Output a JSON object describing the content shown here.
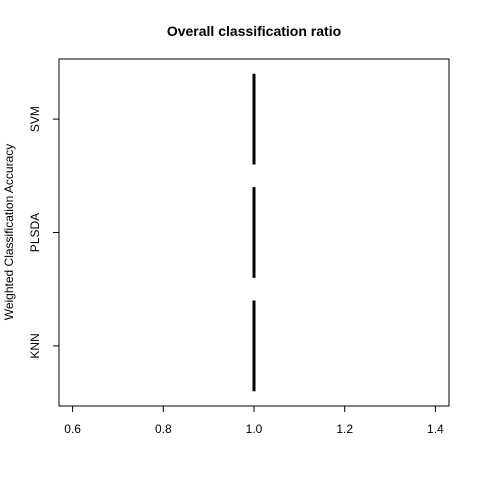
{
  "chart_data": {
    "type": "boxplot",
    "orientation": "horizontal",
    "title": "Overall classification ratio",
    "xlabel": "",
    "ylabel": "Weighted Classification Accuracy",
    "xlim": [
      0.57,
      1.43
    ],
    "xticks": [
      0.6,
      0.8,
      1.0,
      1.2,
      1.4
    ],
    "xtick_labels": [
      "0.6",
      "0.8",
      "1.0",
      "1.2",
      "1.4"
    ],
    "categories": [
      "KNN",
      "PLSDA",
      "SVM"
    ],
    "values": [
      1.0,
      1.0,
      1.0
    ],
    "grid": false,
    "legend": "none",
    "line_color": "#000000"
  }
}
